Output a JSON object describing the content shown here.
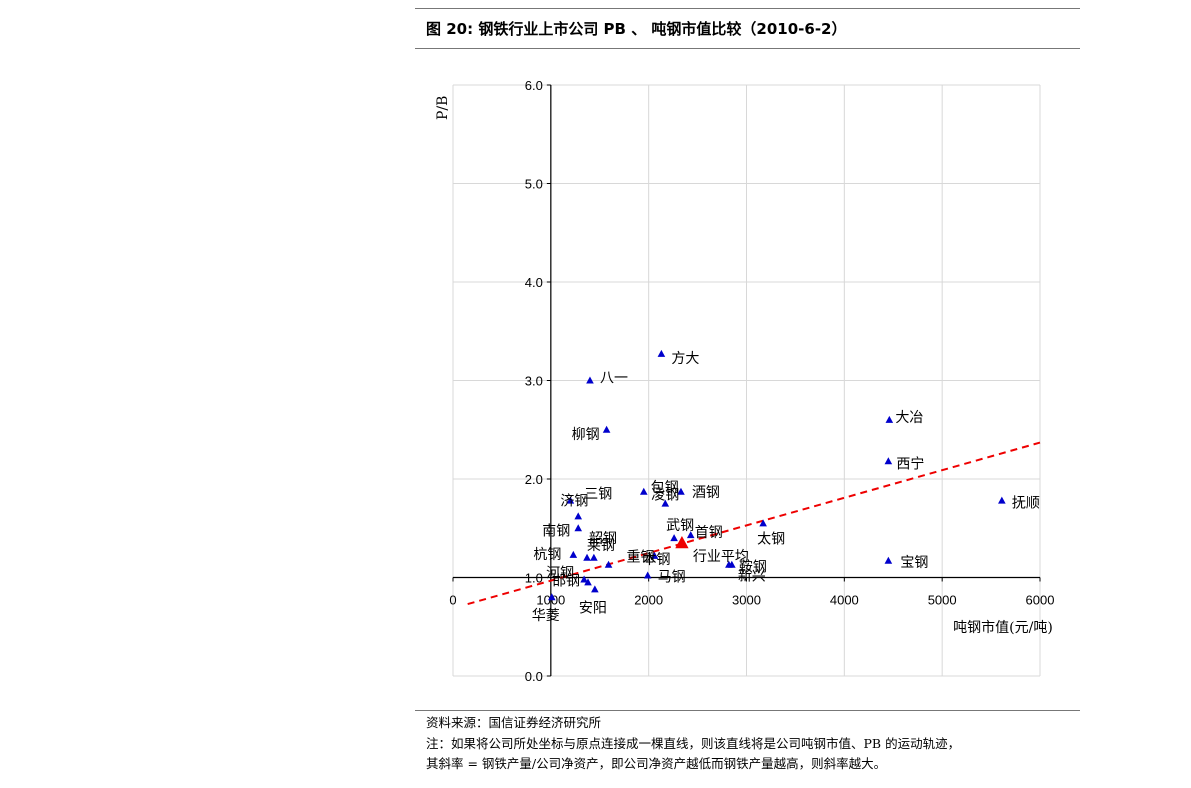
{
  "header": {
    "title": "图 20:  钢铁行业上市公司 PB 、  吨钢市值比较（2010-6-2）"
  },
  "footer": {
    "source": "资料来源：国信证券经济研究所",
    "note1": "注：如果将公司所处坐标与原点连接成一棵直线，则该直线将是公司吨钢市值、PB 的运动轨迹，",
    "note2": "其斜率 = 钢铁产量/公司净资产，即公司净资产越低而钢铁产量越高，则斜率越大。"
  },
  "chart_data": {
    "type": "scatter",
    "title": "图 20:  钢铁行业上市公司 PB 、  吨钢市值比较（2010-6-2）",
    "xlabel": "吨钢市值(元/吨)",
    "ylabel": "P/B",
    "xlim": [
      0,
      6000
    ],
    "ylim": [
      0.0,
      6.0
    ],
    "x_ticks": [
      "0",
      "1000",
      "2000",
      "3000",
      "4000",
      "5000",
      "6000"
    ],
    "y_ticks": [
      "0.0",
      "1.0",
      "2.0",
      "3.0",
      "4.0",
      "5.0",
      "6.0"
    ],
    "x_axis_crosses_y_at": 1.0,
    "y_axis_crosses_x_at": 1000,
    "grid": true,
    "marker_color": "#0000cc",
    "average_color": "#ee0000",
    "points": [
      {
        "label": "方大",
        "x": 2130,
        "y": 3.27
      },
      {
        "label": "八一",
        "x": 1400,
        "y": 3.0
      },
      {
        "label": "柳钢",
        "x": 1570,
        "y": 2.5
      },
      {
        "label": "大冶",
        "x": 4460,
        "y": 2.6
      },
      {
        "label": "西宁",
        "x": 4450,
        "y": 2.18
      },
      {
        "label": "抚顺",
        "x": 5610,
        "y": 1.78
      },
      {
        "label": "包钢",
        "x": 1950,
        "y": 1.87
      },
      {
        "label": "凌钢",
        "x": 2170,
        "y": 1.75
      },
      {
        "label": "酒钢",
        "x": 2330,
        "y": 1.87
      },
      {
        "label": "济钢",
        "x": 1200,
        "y": 1.78
      },
      {
        "label": "三钢",
        "x": 1280,
        "y": 1.62
      },
      {
        "label": "南钢",
        "x": 1280,
        "y": 1.5
      },
      {
        "label": "太钢",
        "x": 3170,
        "y": 1.55
      },
      {
        "label": "首钢",
        "x": 2430,
        "y": 1.43
      },
      {
        "label": "武钢",
        "x": 2260,
        "y": 1.4
      },
      {
        "label": "韶钢",
        "x": 1370,
        "y": 1.2
      },
      {
        "label": "杭钢",
        "x": 1230,
        "y": 1.23
      },
      {
        "label": "莱钢",
        "x": 1440,
        "y": 1.2
      },
      {
        "label": "重钢",
        "x": 1590,
        "y": 1.13
      },
      {
        "label": "本钢",
        "x": 2060,
        "y": 1.22
      },
      {
        "label": "鞍钢",
        "x": 2820,
        "y": 1.13
      },
      {
        "label": "新兴",
        "x": 2850,
        "y": 1.13
      },
      {
        "label": "宝钢",
        "x": 4450,
        "y": 1.17
      },
      {
        "label": "河钢",
        "x": 1340,
        "y": 0.98
      },
      {
        "label": "邯钢",
        "x": 1380,
        "y": 0.95
      },
      {
        "label": "安阳",
        "x": 1450,
        "y": 0.88
      },
      {
        "label": "华菱",
        "x": 1010,
        "y": 0.8
      },
      {
        "label": "马钢",
        "x": 1990,
        "y": 1.02
      }
    ],
    "average": {
      "label": "行业平均",
      "x": 2340,
      "y": 1.35
    },
    "trendline": {
      "x": [
        150,
        6000
      ],
      "y": [
        0.73,
        2.37
      ],
      "style": "dashed",
      "color": "#ee0000"
    }
  }
}
